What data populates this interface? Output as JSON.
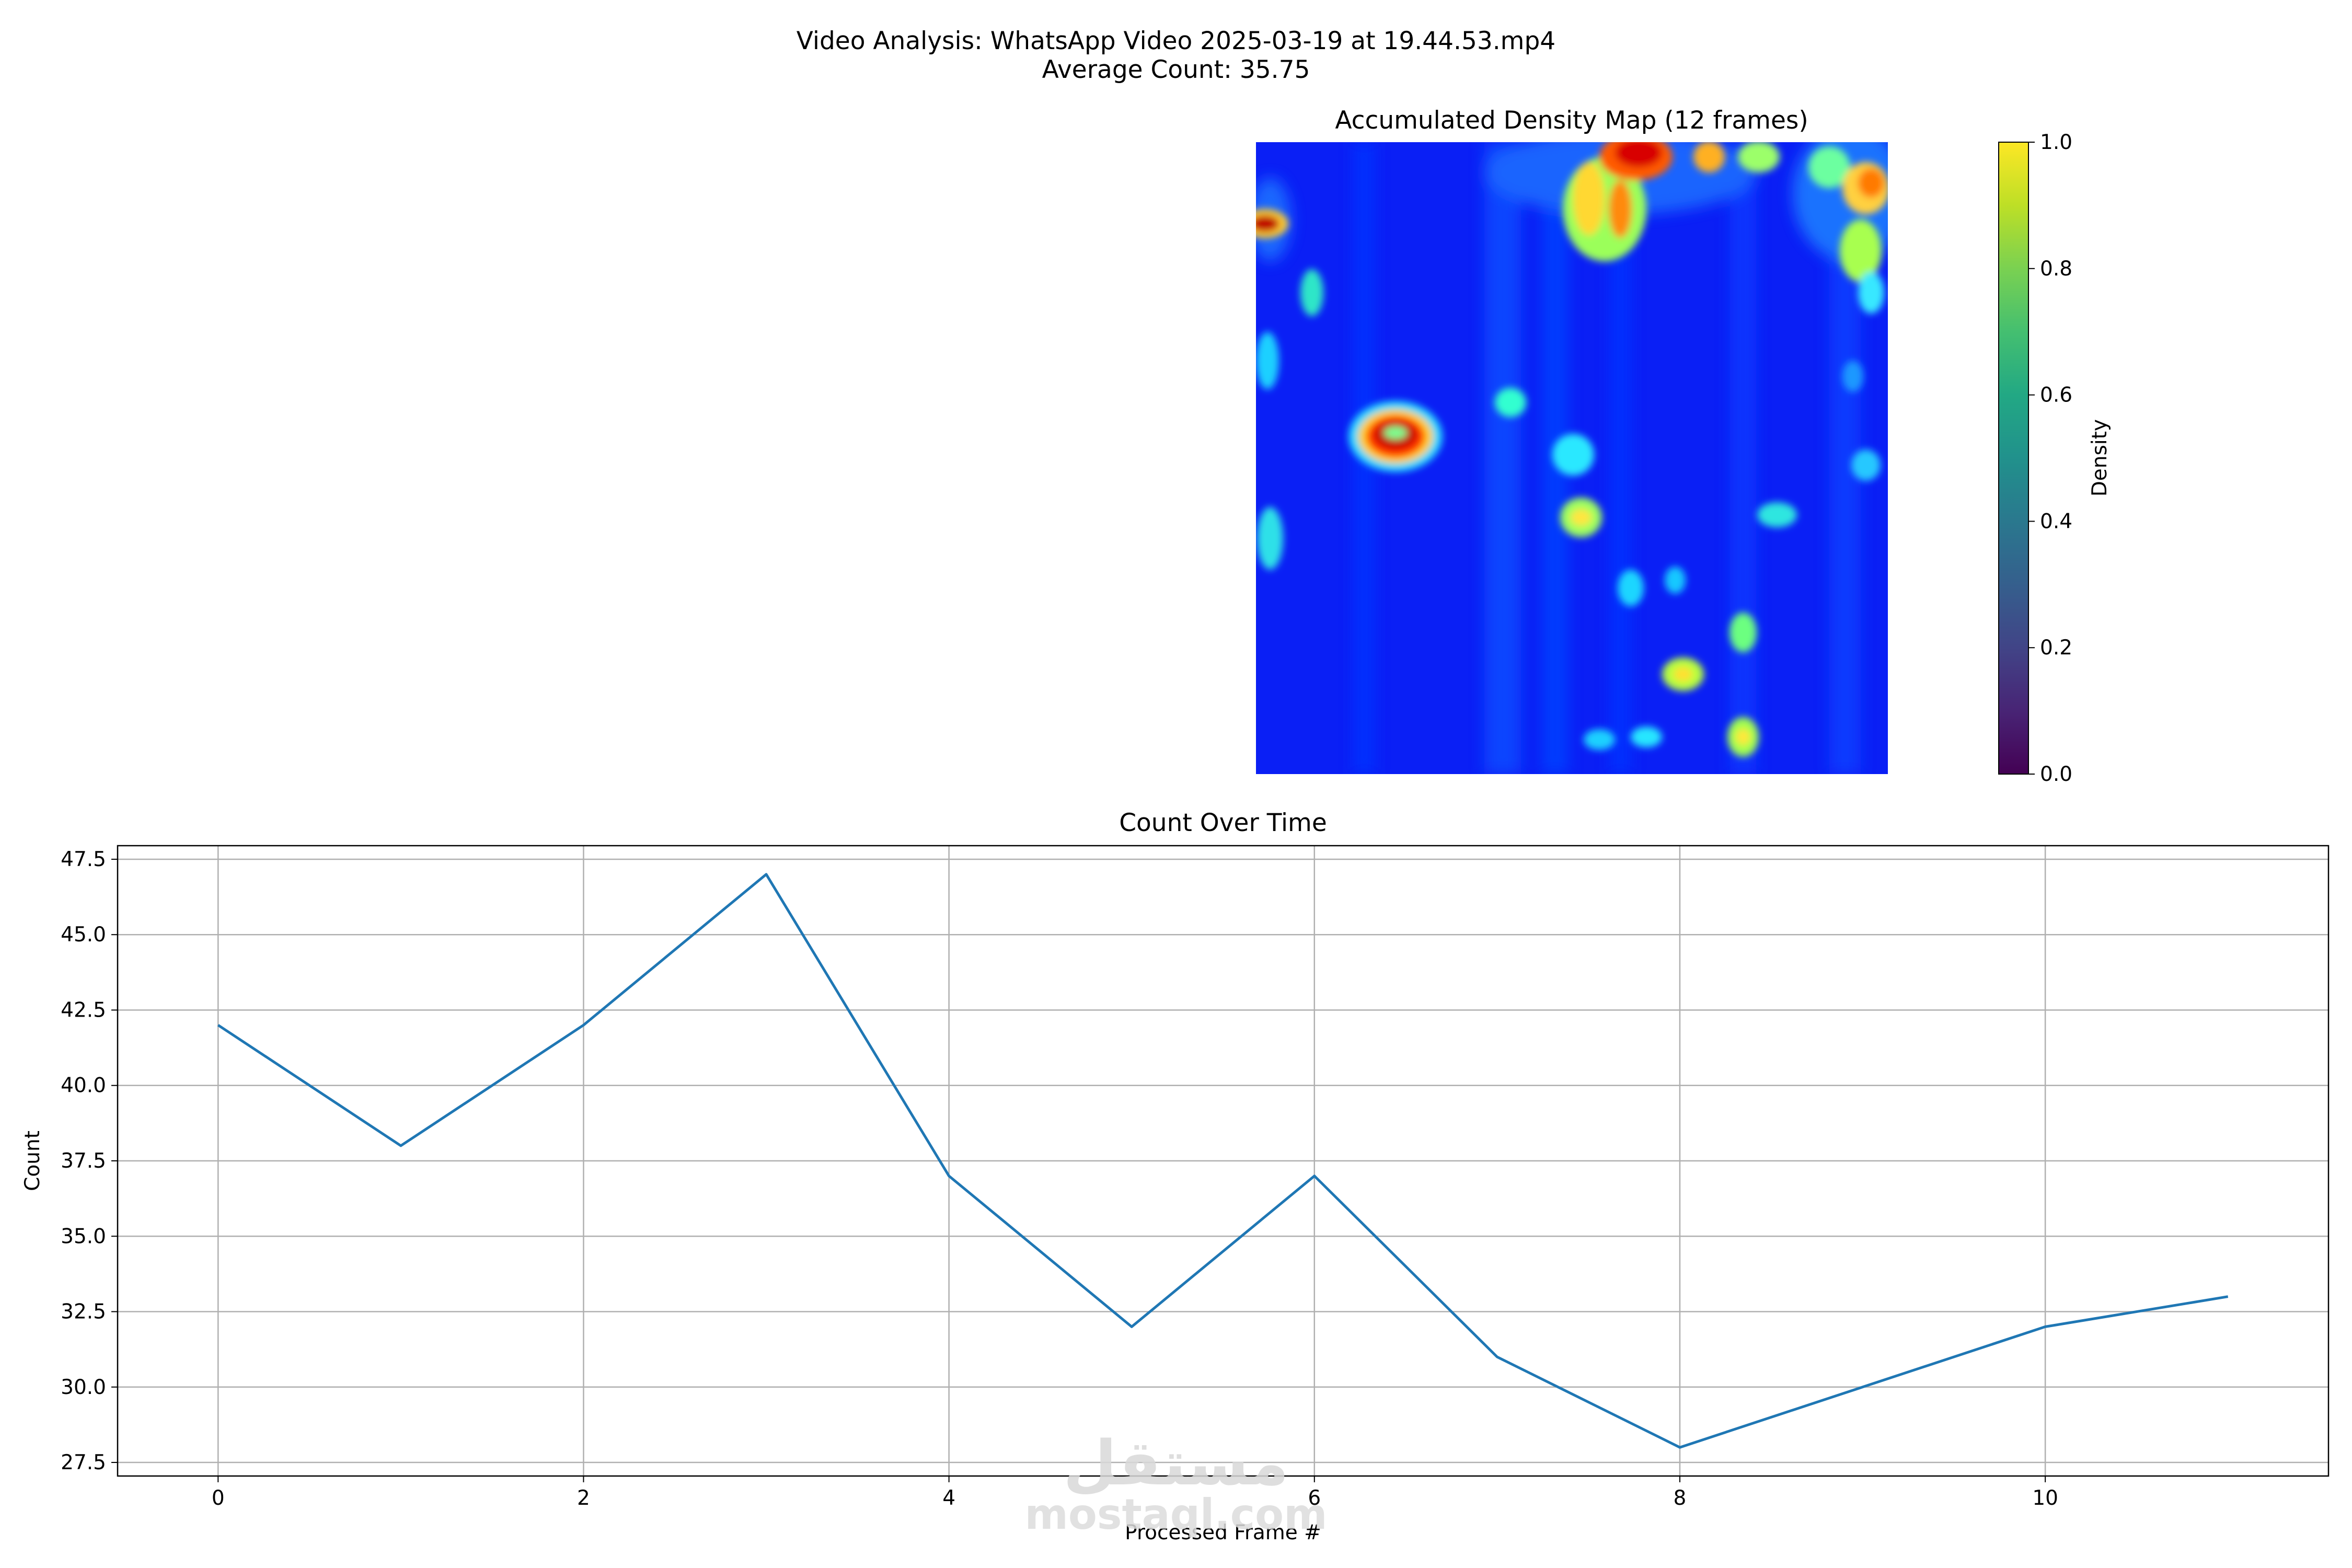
{
  "figure": {
    "title_line1": "Video Analysis: WhatsApp Video 2025-03-19 at 19.44.53.mp4",
    "title_line2": "Average Count: 35.75"
  },
  "watermark": {
    "logo_text": "مستقل",
    "url": "mostaql.com"
  },
  "chart_data": [
    {
      "type": "heatmap",
      "title": "Accumulated Density Map (12 frames)",
      "colormap": "jet",
      "description_of_hotspots": [
        {
          "region": "top-center",
          "level": "high"
        },
        {
          "region": "upper-left edge",
          "level": "high"
        },
        {
          "region": "center-left ring",
          "level": "high"
        },
        {
          "region": "top-right corner",
          "level": "medium-high"
        }
      ]
    },
    {
      "type": "colorbar",
      "label": "Density",
      "colormap": "viridis",
      "ticks": [
        "0.0",
        "0.2",
        "0.4",
        "0.6",
        "0.8",
        "1.0"
      ],
      "range": [
        0,
        1
      ]
    },
    {
      "type": "line",
      "title": "Count Over Time",
      "xlabel": "Processed Frame #",
      "ylabel": "Count",
      "x": [
        0,
        1,
        2,
        3,
        4,
        5,
        6,
        7,
        8,
        9,
        10,
        11
      ],
      "series": [
        {
          "values": [
            42,
            38,
            42,
            47,
            37,
            32,
            37,
            31,
            28,
            30,
            32,
            33
          ],
          "color": "#1f77b4"
        }
      ],
      "xlim": [
        -0.55,
        11.55
      ],
      "ylim": [
        27.05,
        47.95
      ],
      "xticks": [
        0,
        2,
        4,
        6,
        8,
        10
      ],
      "xtick_labels": [
        "0",
        "2",
        "4",
        "6",
        "8",
        "10"
      ],
      "yticks": [
        27.5,
        30.0,
        32.5,
        35.0,
        37.5,
        40.0,
        42.5,
        45.0,
        47.5
      ],
      "ytick_labels": [
        "27.5",
        "30.0",
        "32.5",
        "35.0",
        "37.5",
        "40.0",
        "42.5",
        "45.0",
        "47.5"
      ],
      "grid": true
    }
  ]
}
